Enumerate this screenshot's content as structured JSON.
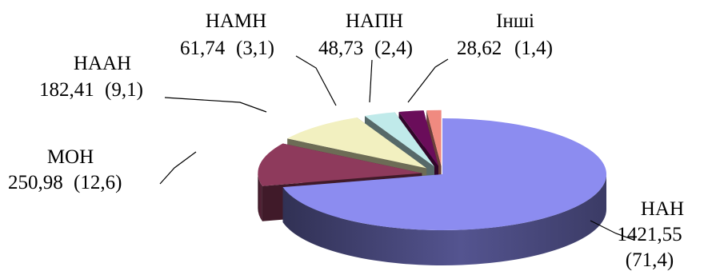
{
  "chart_data": {
    "type": "pie",
    "style": "3d-exploded",
    "title": "",
    "legend": "none",
    "slices": [
      {
        "name": "НАН",
        "value": 1421.55,
        "value_label": "1421,55",
        "percent_label": "(71,4)",
        "color": "#8c8cf0"
      },
      {
        "name": "МОН",
        "value": 250.98,
        "value_label": "250,98",
        "percent_label": "(12,6)",
        "color": "#8e3a5c"
      },
      {
        "name": "НААН",
        "value": 182.41,
        "value_label": "182,41",
        "percent_label": "(9,1)",
        "color": "#f2f0c0"
      },
      {
        "name": "НАМН",
        "value": 61.74,
        "value_label": "61,74",
        "percent_label": "(3,1)",
        "color": "#c0eaea"
      },
      {
        "name": "НАПН",
        "value": 48.73,
        "value_label": "48,73",
        "percent_label": "(2,4)",
        "color": "#6a0d5a"
      },
      {
        "name": "Інші",
        "value": 28.62,
        "value_label": "28,62",
        "percent_label": "(1,4)",
        "color": "#f08a80"
      }
    ]
  }
}
